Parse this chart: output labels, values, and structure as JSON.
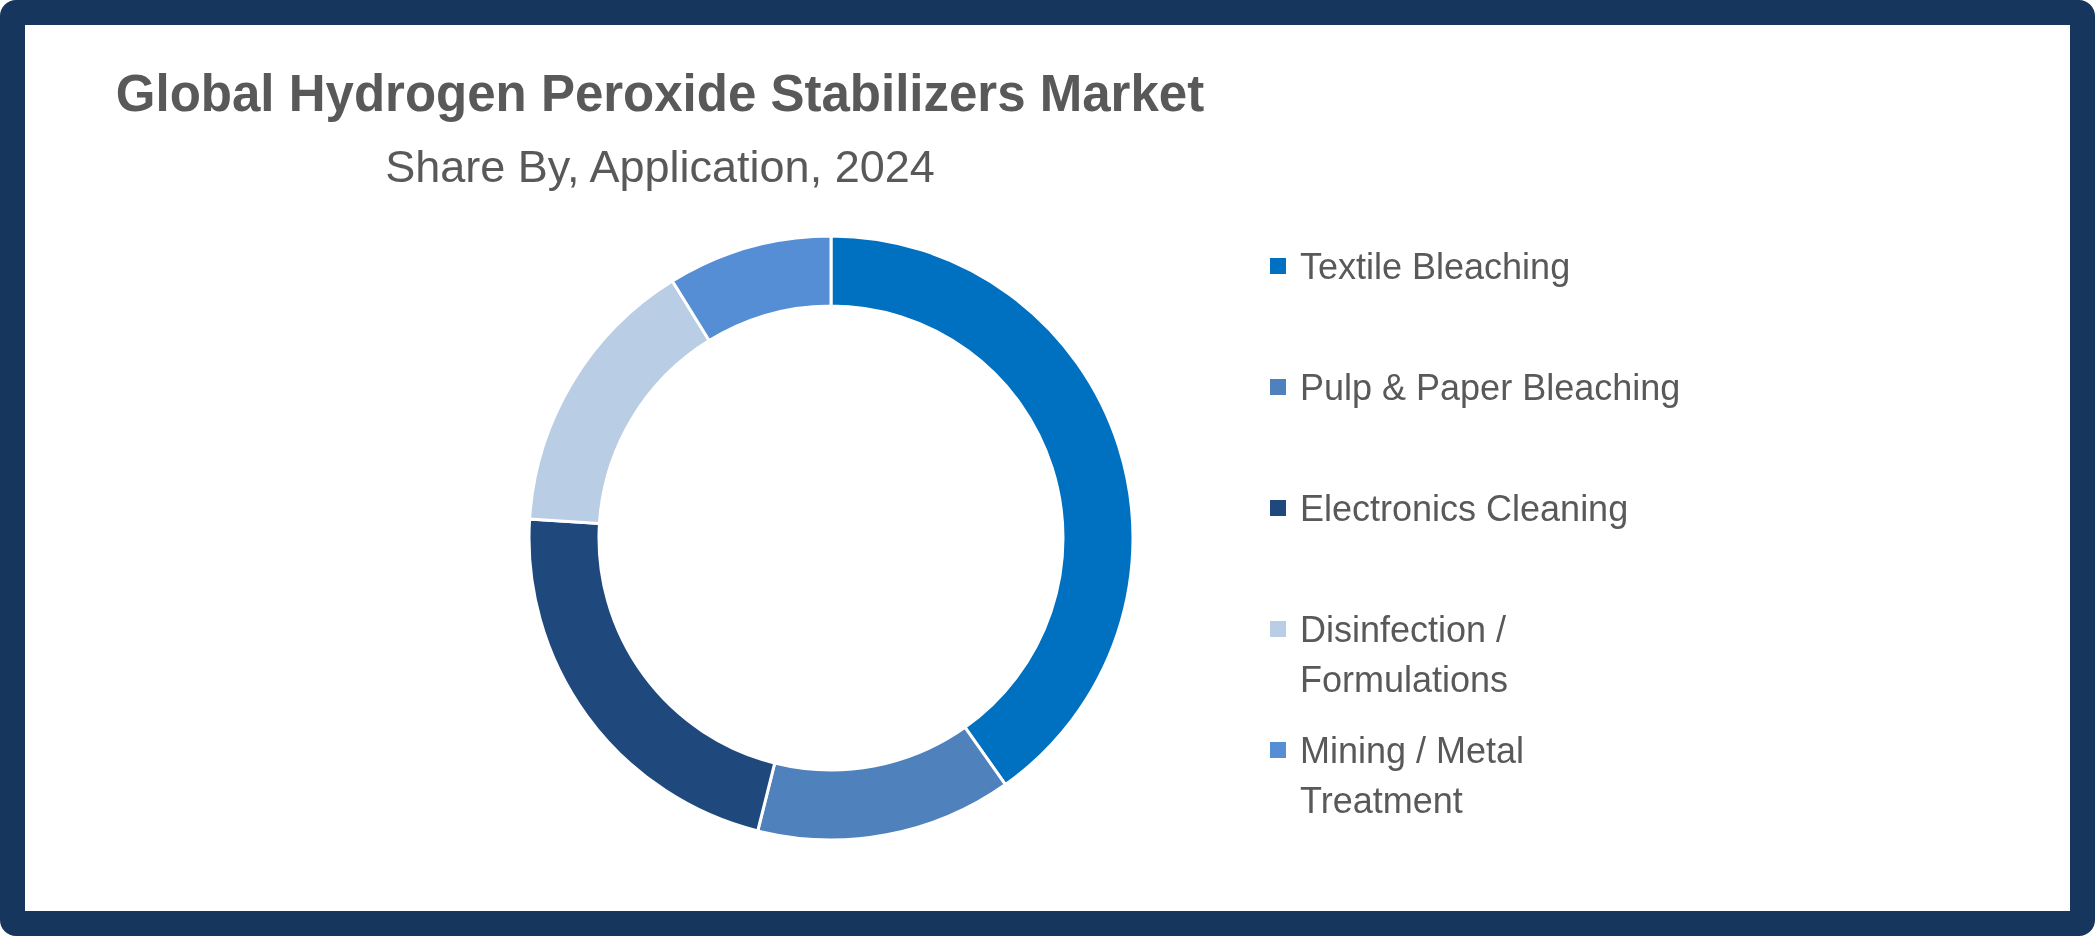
{
  "chart_data": {
    "type": "donut",
    "title": "Global Hydrogen Peroxide Stabilizers Market",
    "subtitle": "Share By, Application, 2024",
    "categories": [
      "Textile Bleaching",
      "Pulp & Paper Bleaching",
      "Electronics Cleaning",
      "Disinfection / Formulations",
      "Mining / Metal Treatment"
    ],
    "values": [
      40.2,
      13.7,
      22.1,
      15.2,
      8.8
    ],
    "colors": [
      "#0070c0",
      "#4f81bd",
      "#1f497d",
      "#b9cde5",
      "#558ed5"
    ],
    "legend": "right"
  }
}
